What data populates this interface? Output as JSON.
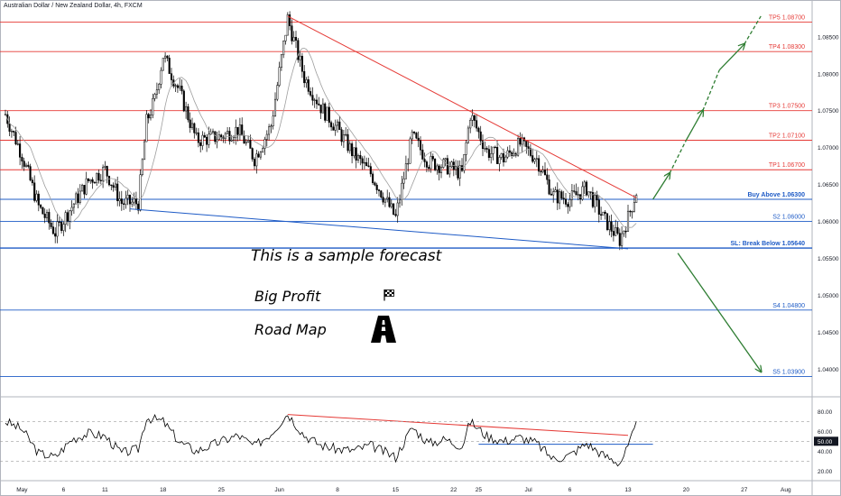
{
  "header": {
    "title": "Australian Dollar / New Zealand Dollar, 4h, FXCM"
  },
  "notes": {
    "forecast": "This is a sample forecast",
    "big_profit": "Big Profit",
    "road_map": "Road Map"
  },
  "icons": {
    "flag": "checkered-flag-icon",
    "road": "road-icon"
  },
  "colors": {
    "resistance": "#e53935",
    "support": "#1e5bc6",
    "candle": "#000000",
    "arrow": "#2e7d32",
    "ma": "#9e9e9e",
    "rsi": "#000000"
  },
  "chart_data": [
    {
      "type": "candlestick",
      "title": "Australian Dollar / New Zealand Dollar, 4h, FXCM",
      "ylim": [
        1.0365,
        1.0895
      ],
      "yticks": [
        1.04,
        1.045,
        1.05,
        1.055,
        1.06,
        1.065,
        1.07,
        1.075,
        1.08,
        1.085
      ],
      "ytick_labels": [
        "1.04000",
        "1.04500",
        "1.05000",
        "1.05500",
        "1.06000",
        "1.06500",
        "1.07000",
        "1.07500",
        "1.08000",
        "1.08500"
      ],
      "xticks": [
        "May",
        "6",
        "11",
        "18",
        "25",
        "Jun",
        "8",
        "15",
        "22",
        "Jun 25",
        "Jul",
        "6",
        "13",
        "20",
        "27",
        "Aug"
      ],
      "xtick_labels": [
        "May",
        "6",
        "11",
        "18",
        "25",
        "Jun",
        "8",
        "15",
        "22",
        "25",
        "Jul",
        "6",
        "13",
        "20",
        "27",
        "Aug"
      ],
      "levels": [
        {
          "name": "TP5",
          "label": "TP5 1.08700",
          "value": 1.087,
          "kind": "resistance"
        },
        {
          "name": "TP4",
          "label": "TP4 1.08300",
          "value": 1.083,
          "kind": "resistance"
        },
        {
          "name": "TP3",
          "label": "TP3 1.07500",
          "value": 1.075,
          "kind": "resistance"
        },
        {
          "name": "TP2",
          "label": "TP2 1.07100",
          "value": 1.071,
          "kind": "resistance"
        },
        {
          "name": "TP1",
          "label": "TP1 1.06700",
          "value": 1.067,
          "kind": "resistance"
        },
        {
          "name": "Buy Above",
          "label": "Buy Above 1.06300",
          "value": 1.063,
          "kind": "entry"
        },
        {
          "name": "S2",
          "label": "S2 1.06000",
          "value": 1.06,
          "kind": "support"
        },
        {
          "name": "SL",
          "label": "SL: Break Below 1.05640",
          "value": 1.0564,
          "kind": "stop"
        },
        {
          "name": "S4",
          "label": "S4 1.04800",
          "value": 1.048,
          "kind": "support"
        },
        {
          "name": "S5",
          "label": "S5 1.03900",
          "value": 1.039,
          "kind": "support"
        }
      ],
      "price_path": [
        [
          "2020-04-29",
          1.0745
        ],
        [
          "2020-05-01",
          1.069
        ],
        [
          "2020-05-03",
          1.062
        ],
        [
          "2020-05-05",
          1.0585
        ],
        [
          "2020-05-07",
          1.062
        ],
        [
          "2020-05-09",
          1.0655
        ],
        [
          "2020-05-11",
          1.067
        ],
        [
          "2020-05-13",
          1.0625
        ],
        [
          "2020-05-15",
          1.0625
        ],
        [
          "2020-05-16",
          1.0735
        ],
        [
          "2020-05-17",
          1.0765
        ],
        [
          "2020-05-18",
          1.0825
        ],
        [
          "2020-05-20",
          1.0775
        ],
        [
          "2020-05-22",
          1.071
        ],
        [
          "2020-05-25",
          1.0715
        ],
        [
          "2020-05-27",
          1.0725
        ],
        [
          "2020-05-29",
          1.0685
        ],
        [
          "2020-05-31",
          1.073
        ],
        [
          "2020-06-02",
          1.0875
        ],
        [
          "2020-06-04",
          1.0795
        ],
        [
          "2020-06-06",
          1.0755
        ],
        [
          "2020-06-08",
          1.0725
        ],
        [
          "2020-06-10",
          1.069
        ],
        [
          "2020-06-12",
          1.0665
        ],
        [
          "2020-06-15",
          1.0605
        ],
        [
          "2020-06-17",
          1.0715
        ],
        [
          "2020-06-19",
          1.068
        ],
        [
          "2020-06-21",
          1.0675
        ],
        [
          "2020-06-23",
          1.0665
        ],
        [
          "2020-06-24",
          1.0745
        ],
        [
          "2020-06-26",
          1.0695
        ],
        [
          "2020-06-28",
          1.0685
        ],
        [
          "2020-06-30",
          1.0705
        ],
        [
          "2020-07-02",
          1.0685
        ],
        [
          "2020-07-04",
          1.0635
        ],
        [
          "2020-07-06",
          1.063
        ],
        [
          "2020-07-08",
          1.0645
        ],
        [
          "2020-07-10",
          1.0605
        ],
        [
          "2020-07-12",
          1.0575
        ],
        [
          "2020-07-13",
          1.0605
        ],
        [
          "2020-07-14",
          1.064
        ]
      ],
      "trendlines": [
        {
          "name": "descending-resistance",
          "from": [
            "2020-06-02",
            1.0878
          ],
          "to": [
            "2020-07-14",
            1.0632
          ]
        },
        {
          "name": "descending-support",
          "from": [
            "2020-05-14",
            1.0617
          ],
          "to": [
            "2020-07-13",
            1.0563
          ]
        },
        {
          "name": "rsi-resistance",
          "from": [
            "2020-06-02",
            77
          ],
          "to": [
            "2020-07-13",
            56
          ],
          "panel": "rsi"
        },
        {
          "name": "rsi-support",
          "from": [
            "2020-06-25",
            47
          ],
          "to": [
            "2020-07-16",
            47
          ],
          "panel": "rsi"
        }
      ],
      "forecast_paths": [
        {
          "name": "bullish",
          "points": [
            [
              "2020-07-16",
              1.063
            ],
            [
              "2020-07-18",
              1.0665
            ],
            [
              "2020-07-20",
              1.071
            ],
            [
              "2020-07-22",
              1.075
            ],
            [
              "2020-07-24",
              1.0805
            ],
            [
              "2020-07-27",
              1.084
            ],
            [
              "2020-07-29",
              1.0878
            ]
          ]
        },
        {
          "name": "bearish",
          "points": [
            [
              "2020-07-19",
              1.0557
            ],
            [
              "2020-07-29",
              1.0397
            ]
          ]
        }
      ]
    },
    {
      "type": "line",
      "title": "RSI",
      "ylim": [
        13,
        93
      ],
      "yticks": [
        20,
        40,
        60,
        80
      ],
      "ytick_labels": [
        "20.00",
        "40.00",
        "60.00",
        "80.00"
      ],
      "current_value": "50.00",
      "guides": [
        30,
        50,
        70
      ],
      "path": [
        [
          "2020-04-29",
          70
        ],
        [
          "2020-05-01",
          62
        ],
        [
          "2020-05-03",
          38
        ],
        [
          "2020-05-05",
          34
        ],
        [
          "2020-05-07",
          52
        ],
        [
          "2020-05-09",
          58
        ],
        [
          "2020-05-11",
          55
        ],
        [
          "2020-05-13",
          38
        ],
        [
          "2020-05-15",
          42
        ],
        [
          "2020-05-16",
          74
        ],
        [
          "2020-05-18",
          70
        ],
        [
          "2020-05-20",
          49
        ],
        [
          "2020-05-22",
          40
        ],
        [
          "2020-05-25",
          50
        ],
        [
          "2020-05-27",
          56
        ],
        [
          "2020-05-29",
          45
        ],
        [
          "2020-05-31",
          58
        ],
        [
          "2020-06-02",
          78
        ],
        [
          "2020-06-04",
          56
        ],
        [
          "2020-06-06",
          46
        ],
        [
          "2020-06-08",
          42
        ],
        [
          "2020-06-10",
          41
        ],
        [
          "2020-06-12",
          46
        ],
        [
          "2020-06-15",
          34
        ],
        [
          "2020-06-17",
          64
        ],
        [
          "2020-06-19",
          48
        ],
        [
          "2020-06-21",
          52
        ],
        [
          "2020-06-23",
          45
        ],
        [
          "2020-06-24",
          70
        ],
        [
          "2020-06-26",
          55
        ],
        [
          "2020-06-28",
          50
        ],
        [
          "2020-06-30",
          54
        ],
        [
          "2020-07-02",
          48
        ],
        [
          "2020-07-04",
          32
        ],
        [
          "2020-07-06",
          36
        ],
        [
          "2020-07-08",
          48
        ],
        [
          "2020-07-10",
          36
        ],
        [
          "2020-07-12",
          28
        ],
        [
          "2020-07-13",
          44
        ],
        [
          "2020-07-14",
          66
        ]
      ]
    }
  ]
}
